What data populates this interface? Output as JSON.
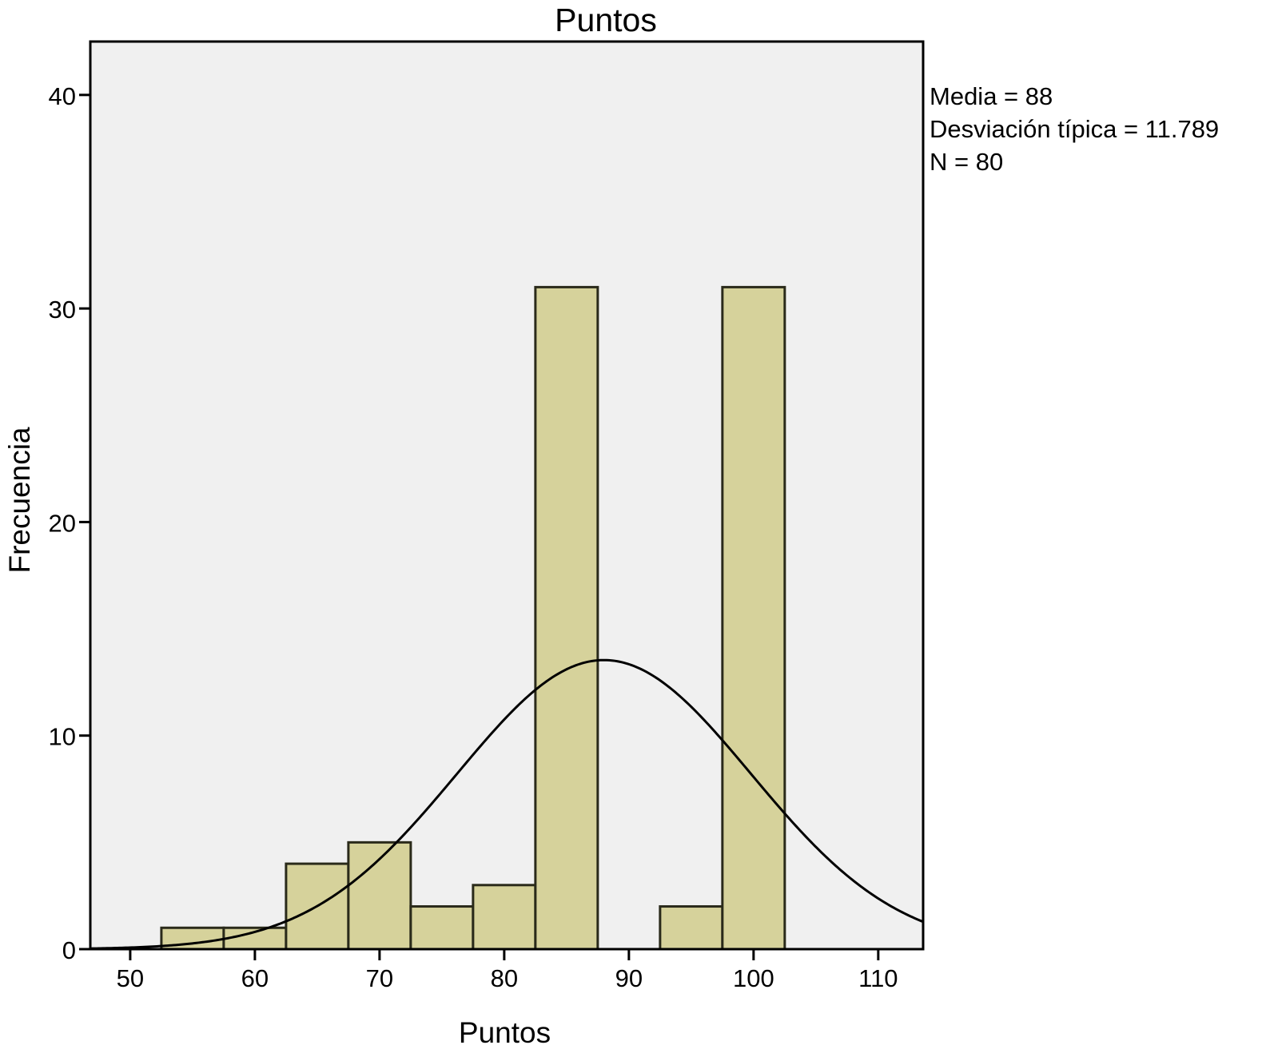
{
  "chart_data": {
    "type": "bar",
    "subtype": "histogram",
    "title": "Puntos",
    "xlabel": "Puntos",
    "ylabel": "Frecuencia",
    "xlim": [
      46.8,
      113.6
    ],
    "ylim": [
      0,
      42.5
    ],
    "x_ticks": [
      "50",
      "60",
      "70",
      "80",
      "90",
      "100",
      "110"
    ],
    "y_ticks": [
      "0",
      "10",
      "20",
      "30",
      "40"
    ],
    "bin_width": 5,
    "bins": [
      {
        "start": 52.5,
        "end": 57.5,
        "count": 1
      },
      {
        "start": 57.5,
        "end": 62.5,
        "count": 1
      },
      {
        "start": 62.5,
        "end": 67.5,
        "count": 4
      },
      {
        "start": 67.5,
        "end": 72.5,
        "count": 5
      },
      {
        "start": 72.5,
        "end": 77.5,
        "count": 2
      },
      {
        "start": 77.5,
        "end": 82.5,
        "count": 3
      },
      {
        "start": 82.5,
        "end": 87.5,
        "count": 31
      },
      {
        "start": 87.5,
        "end": 92.5,
        "count": 0
      },
      {
        "start": 92.5,
        "end": 97.5,
        "count": 2
      },
      {
        "start": 97.5,
        "end": 102.5,
        "count": 31
      }
    ],
    "normal_curve": {
      "mean": 88,
      "sd": 11.789,
      "n": 80
    },
    "stats_lines": [
      "Media = 88",
      "Desviación típica = 11.789",
      "N = 80"
    ],
    "legend_position": "top-right",
    "grid": false,
    "colors": {
      "bar_fill": "#d6d29b",
      "bar_stroke": "#2a2a1a",
      "plot_bg": "#f0f0f0",
      "curve": "#000000"
    }
  }
}
